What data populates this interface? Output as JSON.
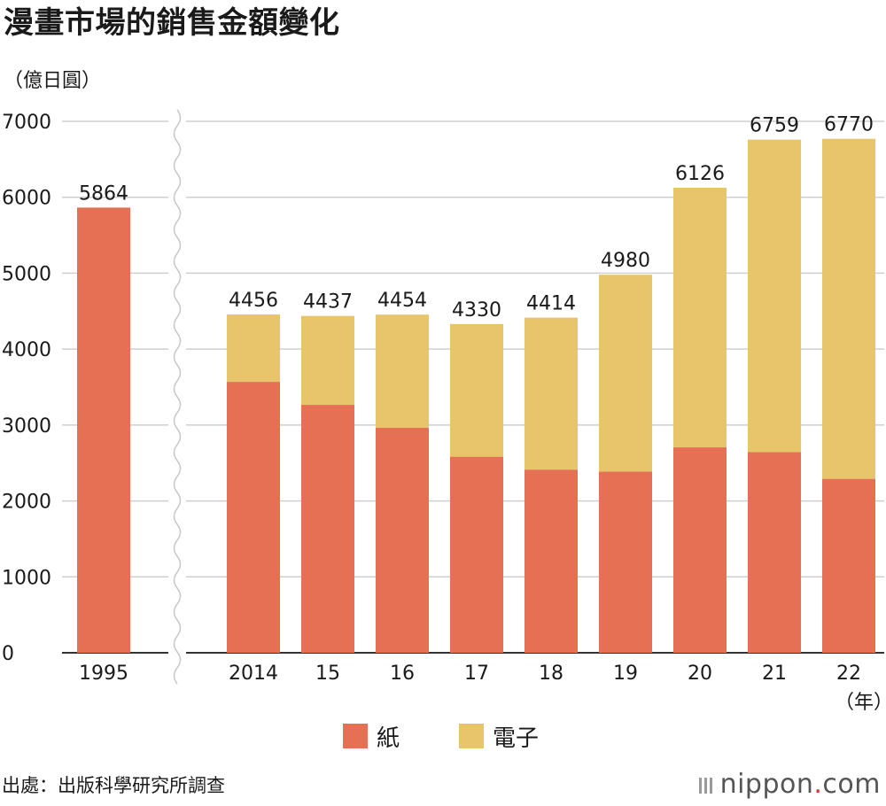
{
  "header": {
    "title": "漫畫市場的銷售金額變化",
    "unit": "（億日圓）"
  },
  "footer": {
    "source": "出處：出版科學研究所調查",
    "brand_name": "nippon",
    "brand_dot": ".",
    "brand_tld": "com"
  },
  "colors": {
    "paper": "#e67054",
    "digital": "#e8c46b",
    "grid": "#cfcfcf",
    "axis": "#333333",
    "text": "#1a1a1a"
  },
  "chart_data": {
    "type": "bar",
    "stacked": true,
    "title": "漫畫市場的銷售金額變化",
    "ylabel": "（億日圓）",
    "xlabel": "（年）",
    "ylim": [
      0,
      7000
    ],
    "yticks": [
      0,
      1000,
      2000,
      3000,
      4000,
      5000,
      6000,
      7000
    ],
    "axis_break_after": "1995",
    "categories": [
      "1995",
      "2014",
      "15",
      "16",
      "17",
      "18",
      "19",
      "20",
      "21",
      "22"
    ],
    "series": [
      {
        "name": "紙",
        "values": [
          5864,
          3569,
          3266,
          2963,
          2583,
          2413,
          2387,
          2706,
          2645,
          2291
        ]
      },
      {
        "name": "電子",
        "values": [
          0,
          887,
          1171,
          1491,
          1747,
          2001,
          2593,
          3420,
          4114,
          4479
        ]
      }
    ],
    "totals": [
      5864,
      4456,
      4437,
      4454,
      4330,
      4414,
      4980,
      6126,
      6759,
      6770
    ],
    "year_suffix": "（年）",
    "legend": [
      "紙",
      "電子"
    ],
    "legend_position": "bottom-center"
  }
}
